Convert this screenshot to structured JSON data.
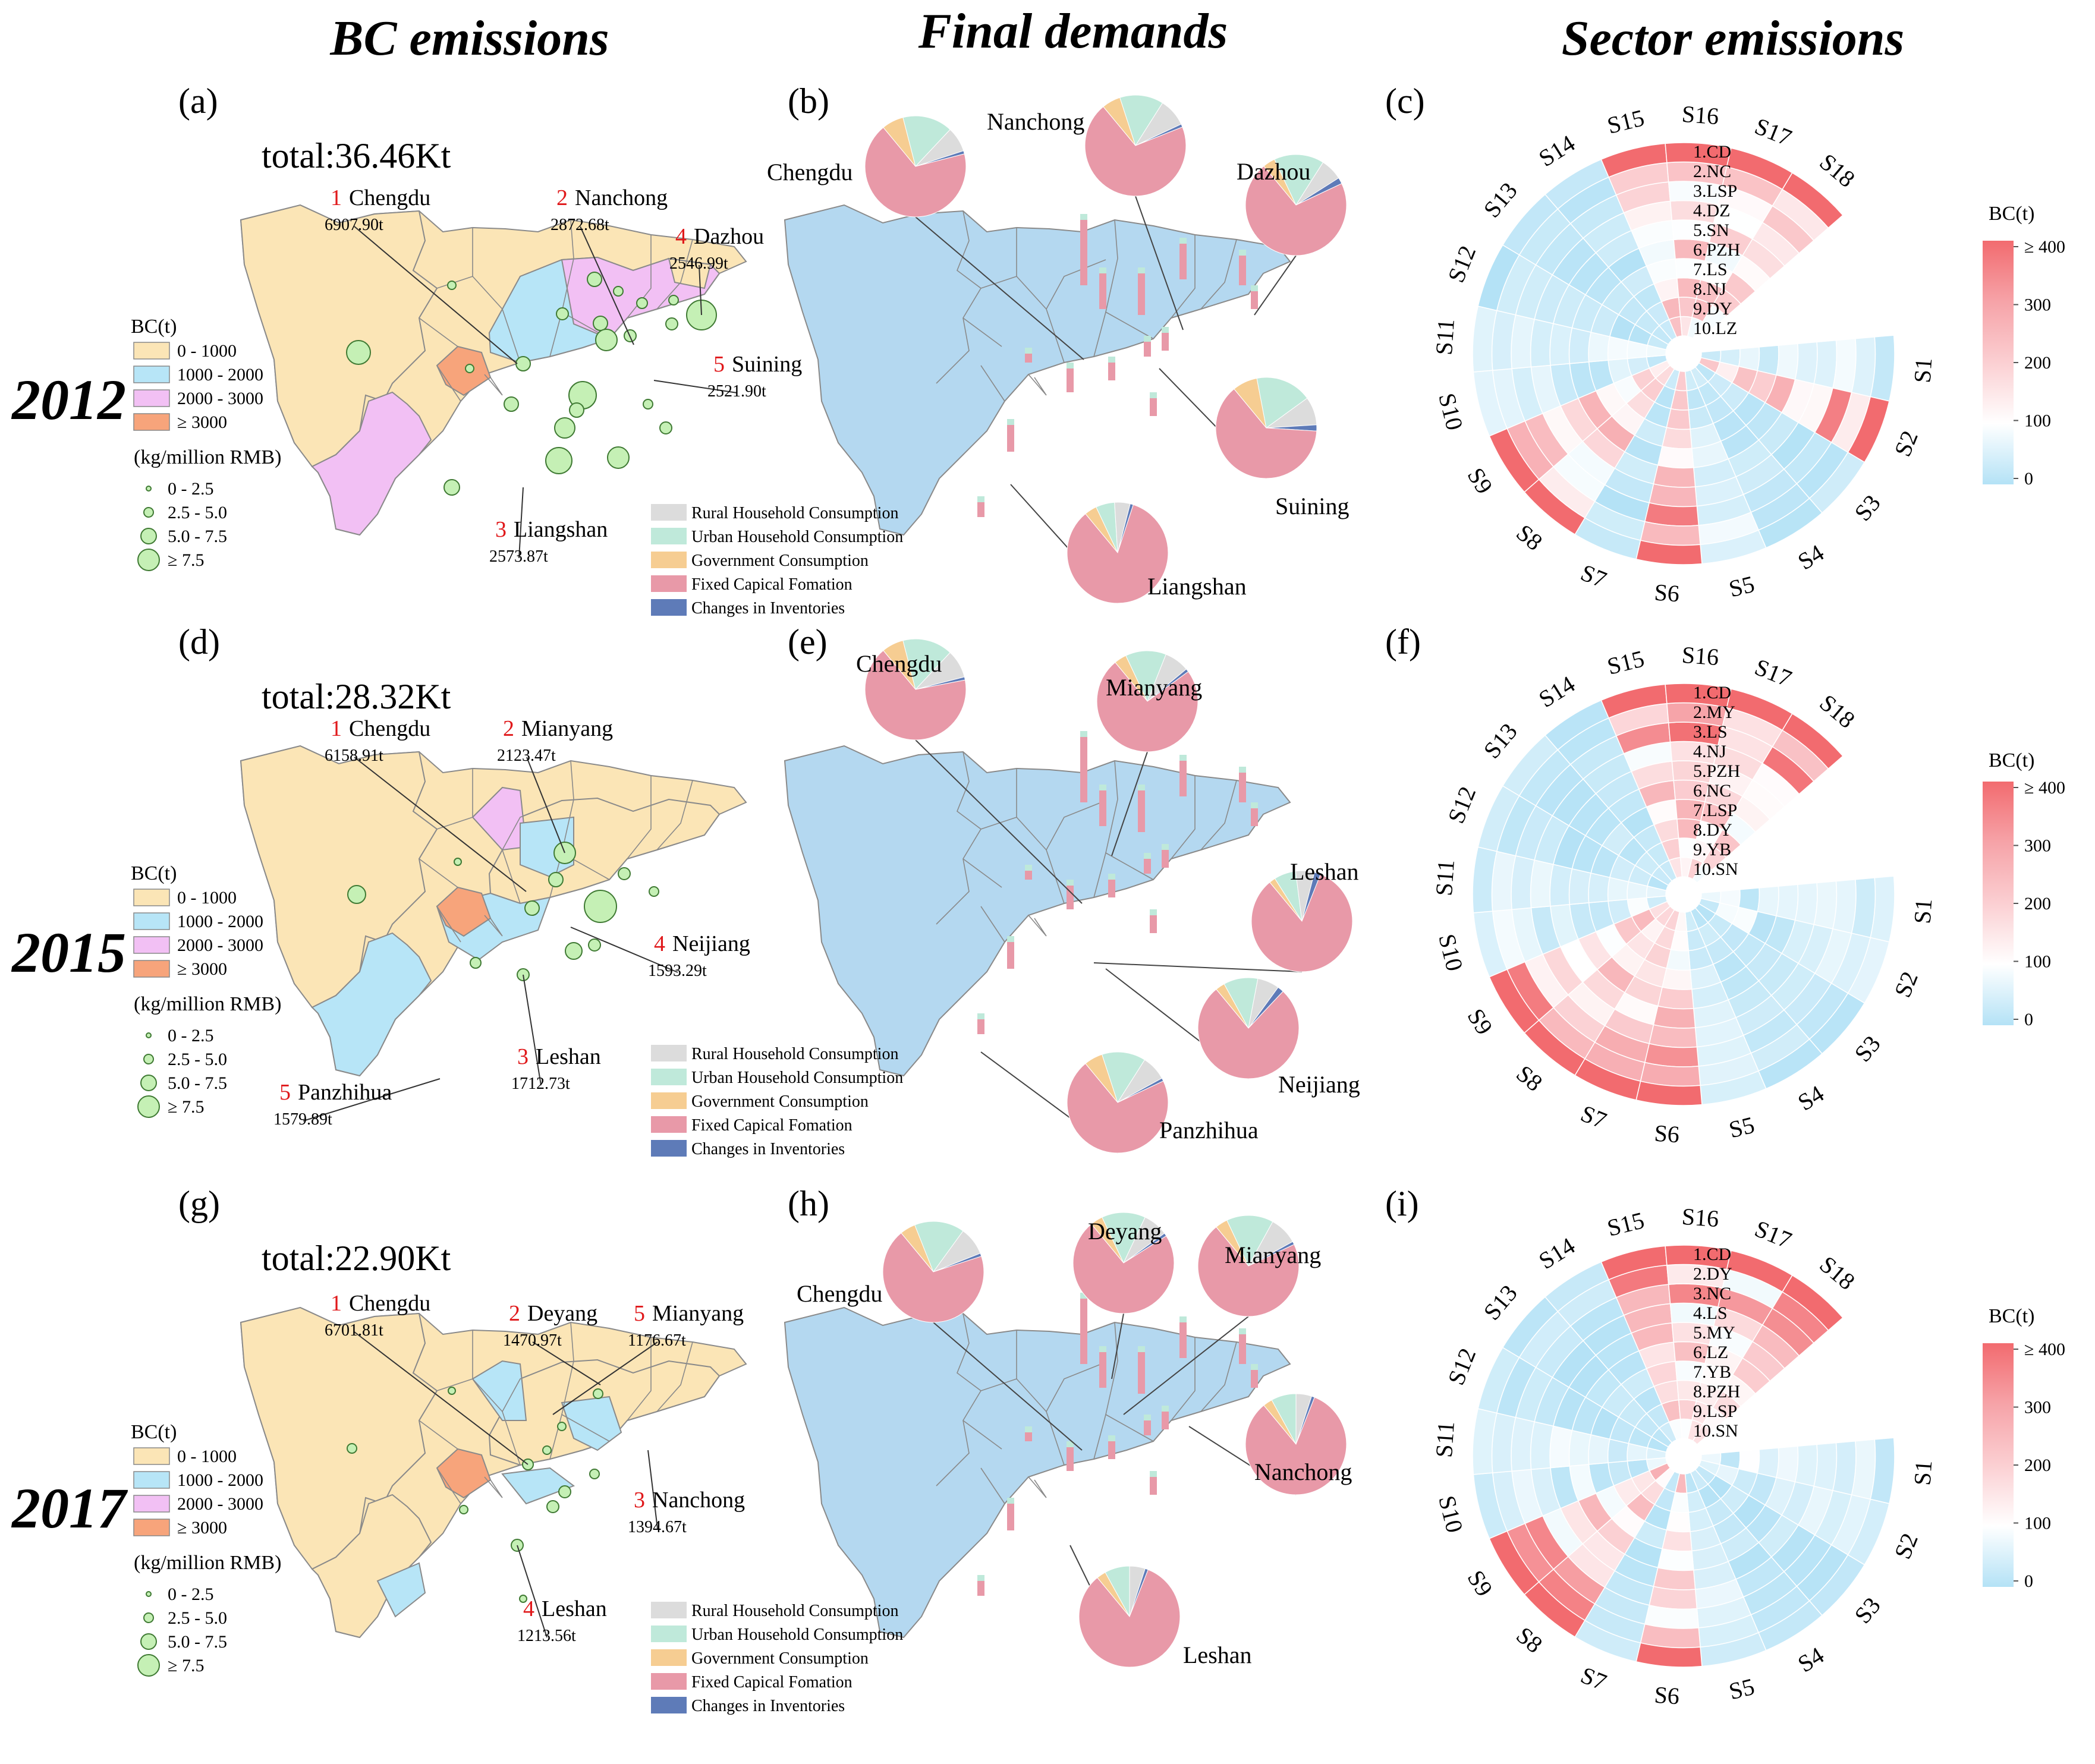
{
  "columns": [
    "BC emissions",
    "Final demands",
    "Sector emissions"
  ],
  "years": [
    "2012",
    "2015",
    "2017"
  ],
  "colors": {
    "bc_0_1000": "#fbe5b6",
    "bc_1000_2000": "#b7e5f7",
    "bc_2000_3000": "#f2c0f4",
    "bc_3000": "#f7a47b",
    "map_blue": "#b4d8f0",
    "bubble": "#c5f0b5",
    "rural": "#dcdcdc",
    "urban": "#bfe9da",
    "government": "#f6cd92",
    "fixed": "#e899a8",
    "inventories": "#5e7bb8"
  },
  "bc_legend": {
    "title": "BC(t)",
    "classes": [
      "0 - 1000",
      "1000 - 2000",
      "2000 - 3000",
      "≥ 3000"
    ],
    "intensity_title": "(kg/million RMB)",
    "intensity_classes": [
      "0 - 2.5",
      "2.5 - 5.0",
      "5.0 - 7.5",
      "≥ 7.5"
    ]
  },
  "fd_legend": [
    "Rural Household Consumption",
    "Urban Household Consumption",
    "Government Consumption",
    "Fixed Capical Fomation",
    "Changes in Inventories"
  ],
  "sector_legend": {
    "title": "BC(t)",
    "ticks": [
      "≥ 400",
      "300",
      "200",
      "100",
      "0"
    ]
  },
  "sectors": [
    "S1",
    "S2",
    "S3",
    "S4",
    "S5",
    "S6",
    "S7",
    "S8",
    "S9",
    "S10",
    "S11",
    "S12",
    "S13",
    "S14",
    "S15",
    "S16",
    "S17",
    "S18"
  ],
  "panels": [
    {
      "map_label": "(a)",
      "fd_label": "(b)",
      "sector_label": "(c)",
      "total": "total:36.46Kt",
      "top_cities": [
        {
          "rank": "1",
          "name": "Chengdu",
          "value": "6907.90t"
        },
        {
          "rank": "2",
          "name": "Nanchong",
          "value": "2872.68t"
        },
        {
          "rank": "3",
          "name": "Liangshan",
          "value": "2573.87t"
        },
        {
          "rank": "4",
          "name": "Dazhou",
          "value": "2546.99t"
        },
        {
          "rank": "5",
          "name": "Suining",
          "value": "2521.90t"
        }
      ],
      "pies": [
        {
          "name": "Chengdu",
          "shares": [
            0.08,
            0.16,
            0.07,
            0.68,
            0.01
          ]
        },
        {
          "name": "Nanchong",
          "shares": [
            0.09,
            0.14,
            0.06,
            0.7,
            0.01
          ]
        },
        {
          "name": "Dazhou",
          "shares": [
            0.07,
            0.16,
            0.04,
            0.71,
            0.02
          ]
        },
        {
          "name": "Suining",
          "shares": [
            0.09,
            0.18,
            0.08,
            0.63,
            0.02
          ]
        },
        {
          "name": "Liangshan",
          "shares": [
            0.05,
            0.06,
            0.04,
            0.84,
            0.01
          ]
        }
      ],
      "rank_list": [
        "1.CD",
        "2.NC",
        "3.LSP",
        "4.DZ",
        "5.SN",
        "6.PZH",
        "7.LS",
        "8.NJ",
        "9.DY",
        "10.LZ"
      ],
      "hot_sectors": [
        2,
        6,
        8,
        9,
        15,
        16,
        17,
        18
      ]
    },
    {
      "map_label": "(d)",
      "fd_label": "(e)",
      "sector_label": "(f)",
      "total": "total:28.32Kt",
      "top_cities": [
        {
          "rank": "1",
          "name": "Chengdu",
          "value": "6158.91t"
        },
        {
          "rank": "2",
          "name": "Mianyang",
          "value": "2123.47t"
        },
        {
          "rank": "3",
          "name": "Leshan",
          "value": "1712.73t"
        },
        {
          "rank": "4",
          "name": "Neijiang",
          "value": "1593.29t"
        },
        {
          "rank": "5",
          "name": "Panzhihua",
          "value": "1579.89t"
        }
      ],
      "pies": [
        {
          "name": "Chengdu",
          "shares": [
            0.09,
            0.16,
            0.07,
            0.67,
            0.01
          ]
        },
        {
          "name": "Mianyang",
          "shares": [
            0.08,
            0.13,
            0.04,
            0.74,
            0.01
          ]
        },
        {
          "name": "Leshan",
          "shares": [
            0.06,
            0.07,
            0.02,
            0.83,
            0.02
          ]
        },
        {
          "name": "Neijiang",
          "shares": [
            0.07,
            0.11,
            0.03,
            0.77,
            0.02
          ]
        },
        {
          "name": "Panzhihua",
          "shares": [
            0.08,
            0.14,
            0.06,
            0.71,
            0.01
          ]
        }
      ],
      "rank_list": [
        "1.CD",
        "2.MY",
        "3.LS",
        "4.NJ",
        "5.PZH",
        "6.NC",
        "7.LSP",
        "8.DY",
        "9.YB",
        "10.SN"
      ],
      "hot_sectors": [
        6,
        7,
        8,
        9,
        15,
        16,
        17,
        18
      ]
    },
    {
      "map_label": "(g)",
      "fd_label": "(h)",
      "sector_label": "(i)",
      "total": "total:22.90Kt",
      "top_cities": [
        {
          "rank": "1",
          "name": "Chengdu",
          "value": "6701.81t"
        },
        {
          "rank": "2",
          "name": "Deyang",
          "value": "1470.97t"
        },
        {
          "rank": "3",
          "name": "Nanchong",
          "value": "1394.67t"
        },
        {
          "rank": "4",
          "name": "Leshan",
          "value": "1213.56t"
        },
        {
          "rank": "5",
          "name": "Mianyang",
          "value": "1176.67t"
        }
      ],
      "pies": [
        {
          "name": "Chengdu",
          "shares": [
            0.09,
            0.16,
            0.05,
            0.69,
            0.01
          ]
        },
        {
          "name": "Deyang",
          "shares": [
            0.08,
            0.14,
            0.04,
            0.73,
            0.01
          ]
        },
        {
          "name": "Mianyang",
          "shares": [
            0.09,
            0.15,
            0.04,
            0.71,
            0.01
          ]
        },
        {
          "name": "Nanchong",
          "shares": [
            0.05,
            0.08,
            0.03,
            0.83,
            0.01
          ]
        },
        {
          "name": "Leshan",
          "shares": [
            0.05,
            0.08,
            0.03,
            0.83,
            0.01
          ]
        }
      ],
      "rank_list": [
        "1.CD",
        "2.DY",
        "3.NC",
        "4.LS",
        "5.MY",
        "6.LZ",
        "7.YB",
        "8.PZH",
        "9.LSP",
        "10.SN"
      ],
      "hot_sectors": [
        6,
        8,
        9,
        15,
        16,
        17,
        18
      ]
    }
  ]
}
